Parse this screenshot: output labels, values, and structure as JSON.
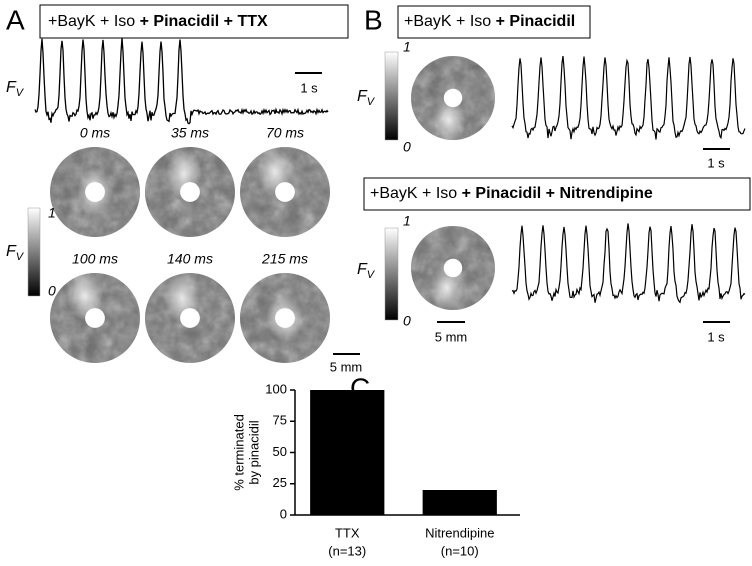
{
  "panel_a": {
    "label": "A",
    "condition_plain": "+BayK + Iso",
    "condition_bold": "+ Pinacidil + TTX",
    "signal_label": "F",
    "signal_label_sub": "V",
    "time_scale": "1 s",
    "frame_times": [
      "0 ms",
      "35 ms",
      "70 ms",
      "100 ms",
      "140 ms",
      "215 ms"
    ],
    "colorbar_label": "F",
    "colorbar_label_sub": "V",
    "colorbar_ticks": [
      1,
      0
    ],
    "space_scale": "5 mm"
  },
  "panel_b": {
    "label": "B",
    "rows": [
      {
        "condition_plain": "+BayK + Iso",
        "condition_bold": "+ Pinacidil",
        "colorbar_label": "F",
        "colorbar_label_sub": "V",
        "colorbar_ticks": [
          1,
          0
        ],
        "time_scale": "1 s"
      },
      {
        "condition_plain": "+BayK + Iso",
        "condition_bold": "+ Pinacidil + Nitrendipine",
        "colorbar_label": "F",
        "colorbar_label_sub": "V",
        "colorbar_ticks": [
          1,
          0
        ],
        "time_scale": "1 s",
        "space_scale": "5 mm"
      }
    ]
  },
  "chart_data": {
    "type": "bar",
    "panel_label": "C",
    "y_label": [
      "% terminated",
      "by pinacidil"
    ],
    "categories": [
      "TTX",
      "Nitrendipine"
    ],
    "category_counts": [
      "(n=13)",
      "(n=10)"
    ],
    "values": [
      100,
      20
    ],
    "color": "#000000",
    "ylim": [
      0,
      100
    ],
    "yticks": [
      0,
      25,
      50,
      75,
      100
    ]
  }
}
